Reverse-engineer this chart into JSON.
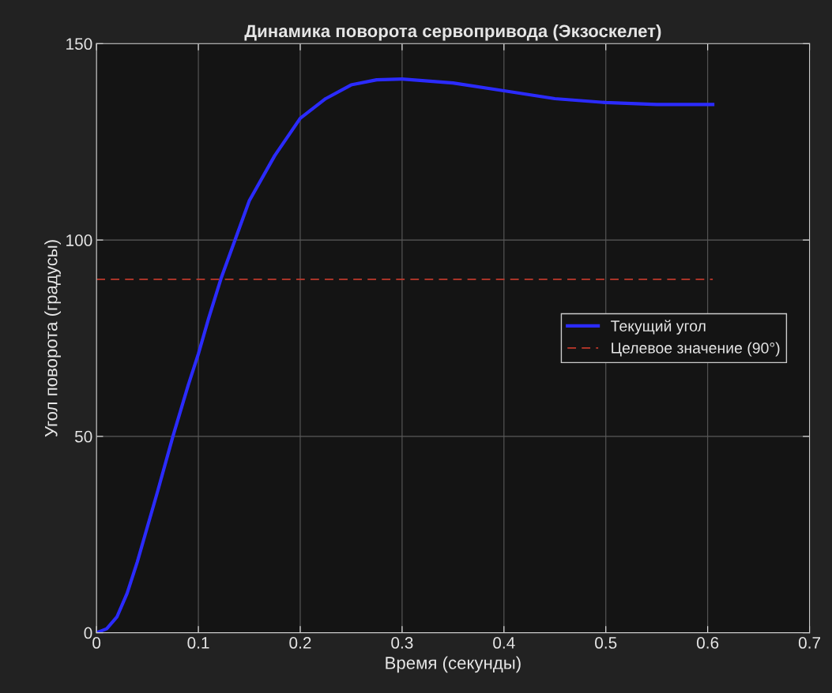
{
  "chart_data": {
    "type": "line",
    "title": "Динамика поворота сервопривода (Экзоскелет)",
    "xlabel": "Время (секунды)",
    "ylabel": "Угол поворота (градусы)",
    "xlim": [
      0,
      0.7
    ],
    "xticks": [
      0,
      0.1,
      0.2,
      0.3,
      0.4,
      0.5,
      0.6,
      0.7
    ],
    "ylim": [
      0,
      150
    ],
    "yticks": [
      0,
      50,
      100,
      150
    ],
    "grid": true,
    "legend": "right",
    "series": [
      {
        "name": "Текущий угол",
        "color": "#2b2bff",
        "line_style": "solid",
        "x": [
          0,
          0.01,
          0.02,
          0.03,
          0.04,
          0.05,
          0.06,
          0.075,
          0.09,
          0.1,
          0.11,
          0.122,
          0.136,
          0.15,
          0.175,
          0.2,
          0.225,
          0.25,
          0.275,
          0.3,
          0.35,
          0.4,
          0.45,
          0.5,
          0.55,
          0.605
        ],
        "values": [
          0,
          1,
          4,
          10,
          18,
          27,
          36,
          50,
          63,
          71,
          80,
          90,
          100,
          110,
          121.5,
          131,
          136,
          139.5,
          140.8,
          141,
          140,
          138,
          136,
          135,
          134.5,
          134.5
        ]
      },
      {
        "name": "Целевое значение (90°)",
        "color": "#c0392b",
        "line_style": "dashed",
        "x": [
          0,
          0.605
        ],
        "values": [
          90,
          90
        ]
      }
    ]
  }
}
